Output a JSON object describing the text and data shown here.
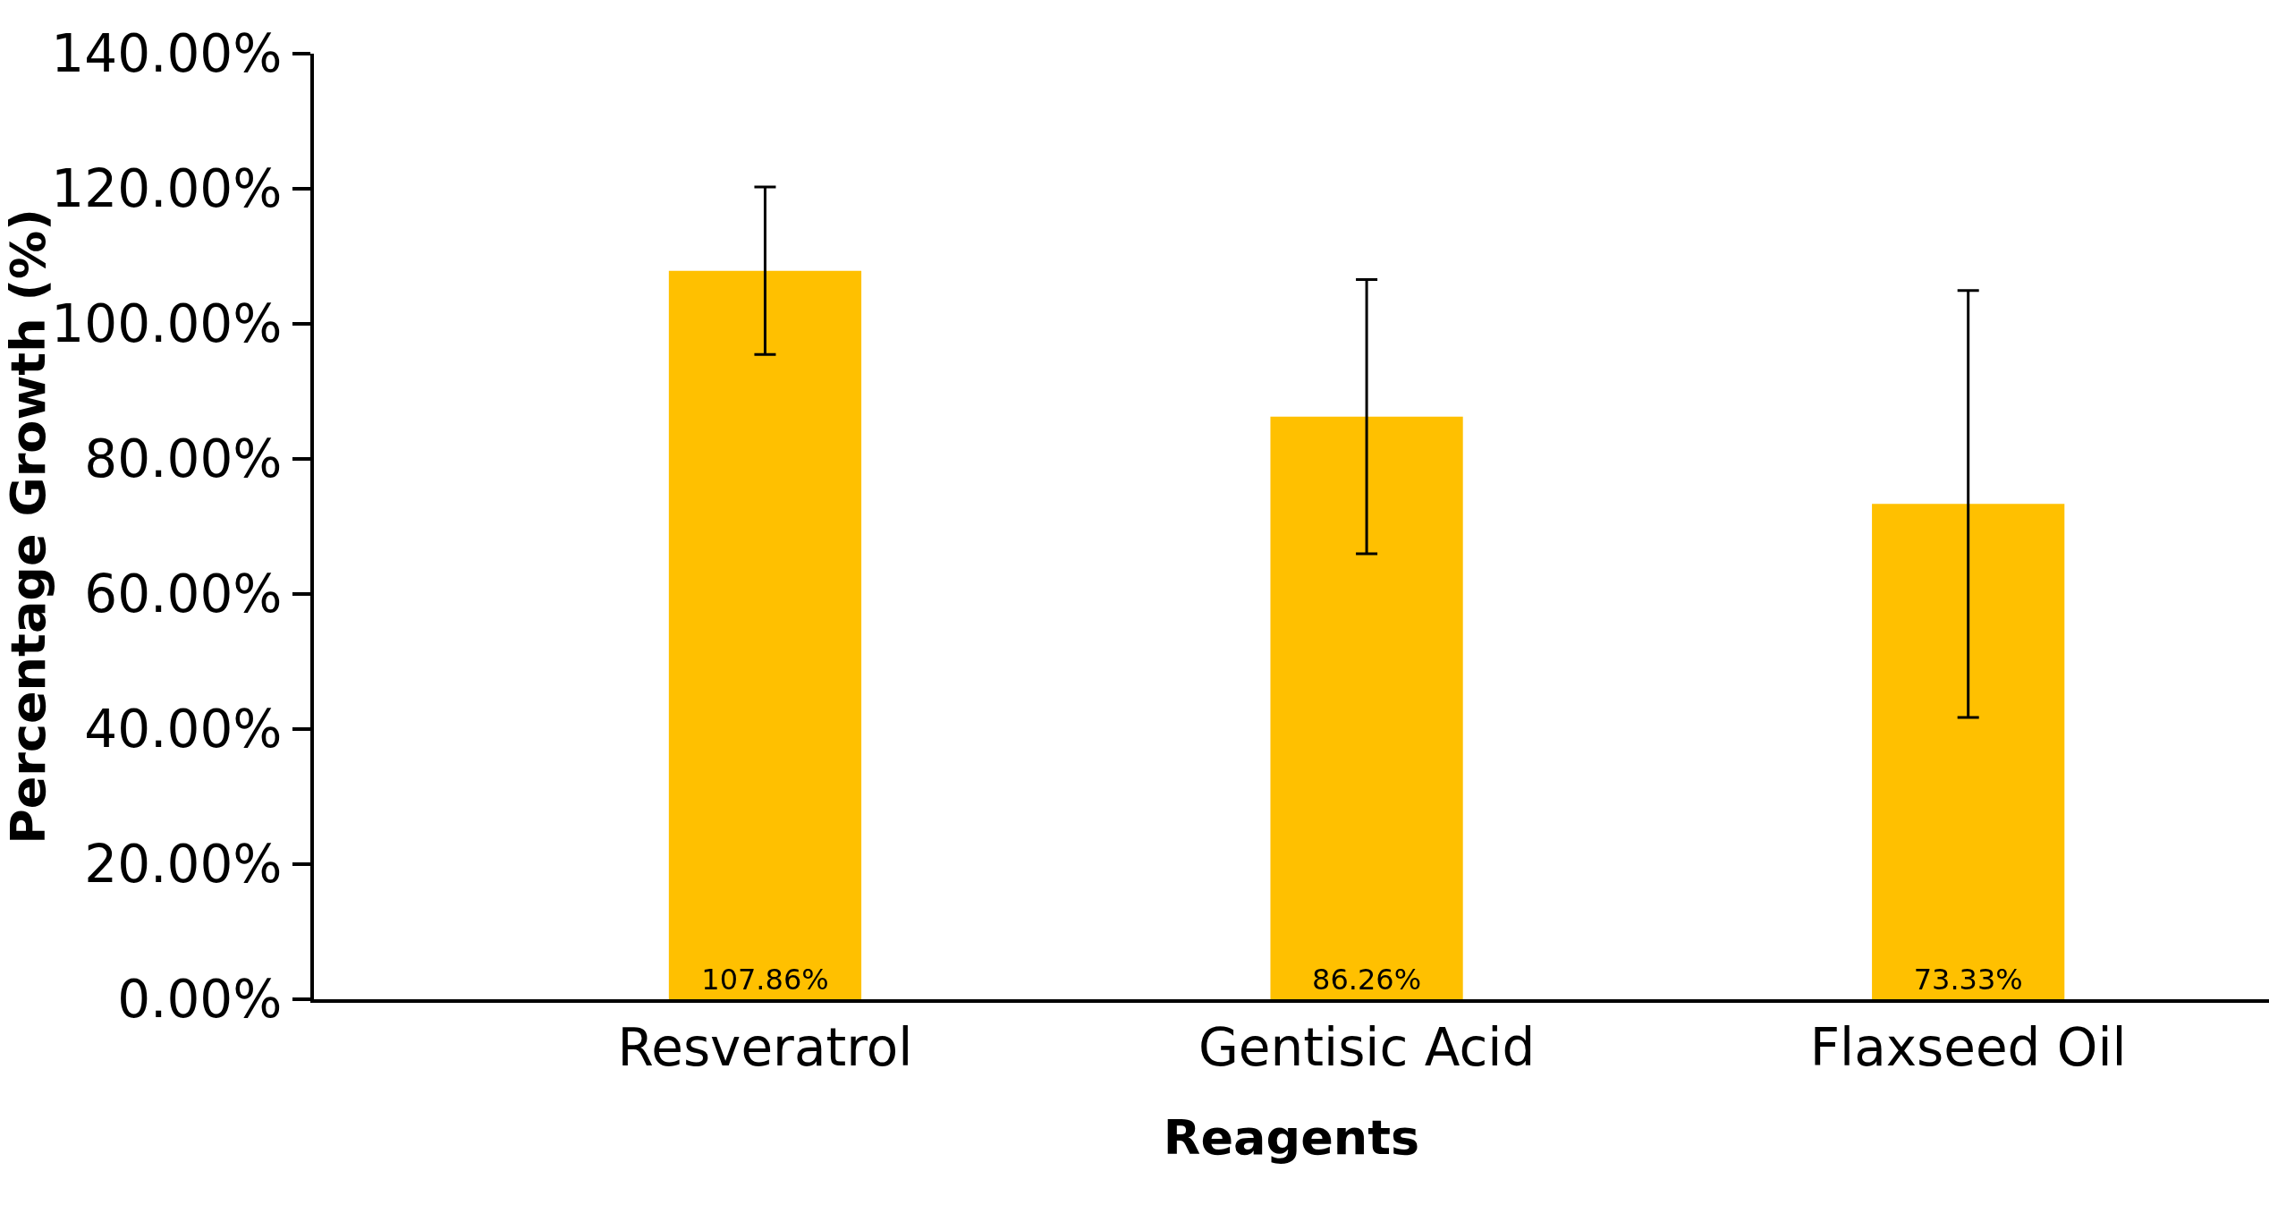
{
  "chart_data": {
    "type": "bar",
    "xlabel": "Reagents",
    "ylabel": "Percentage Growth (%)",
    "categories": [
      "Resveratrol",
      "Gentisic Acid",
      "Flaxseed Oil"
    ],
    "values": [
      107.86,
      86.26,
      73.33
    ],
    "value_labels": [
      "107.86%",
      "86.26%",
      "73.33%"
    ],
    "errors": [
      12.4,
      20.3,
      31.6
    ],
    "color": "#ffc000",
    "ylim": [
      0,
      140
    ],
    "yticks": [
      {
        "value": 0,
        "label": "0.00%"
      },
      {
        "value": 20,
        "label": "20.00%"
      },
      {
        "value": 40,
        "label": "40.00%"
      },
      {
        "value": 60,
        "label": "60.00%"
      },
      {
        "value": 80,
        "label": "80.00%"
      },
      {
        "value": 100,
        "label": "100.00%"
      },
      {
        "value": 120,
        "label": "120.00%"
      },
      {
        "value": 140,
        "label": "140.00%"
      }
    ],
    "line_style": "solid"
  }
}
